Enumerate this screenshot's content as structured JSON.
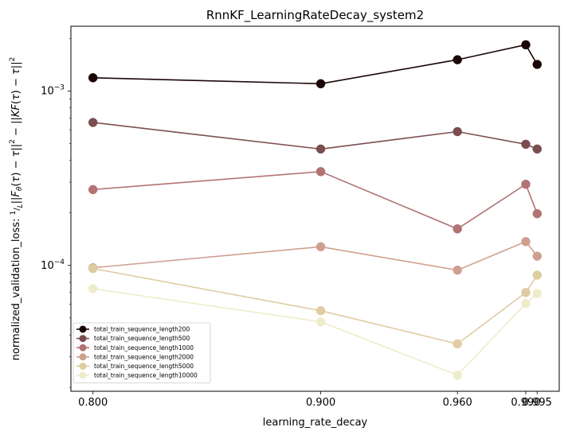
{
  "chart_data": {
    "type": "line",
    "title": "RnnKF_LearningRateDecay_system2",
    "xlabel": "learning_rate_decay",
    "ylabel": "normalized_validation_loss: $\\frac{1}{L}||F_\\theta(\\tau) - \\tau||^2 - ||KF(\\tau) - \\tau||^2$",
    "yscale": "log",
    "x": [
      0.8,
      0.9,
      0.96,
      0.99,
      0.995
    ],
    "xticks": [
      0.8,
      0.9,
      0.96,
      0.99,
      0.995
    ],
    "xtick_labels": [
      "0.800",
      "0.900",
      "0.960",
      "0.990",
      "0.995"
    ],
    "ytick_labels": [
      "10^-3",
      "10^-4"
    ],
    "xlim": [
      0.7903,
      1.0047
    ],
    "ylim": [
      1.9e-05,
      0.00235
    ],
    "legend_position": "lower-left",
    "series": [
      {
        "name": "total_train_sequence_length200",
        "color": "#1a0606",
        "values": [
          0.00119,
          0.0011,
          0.00151,
          0.00184,
          0.00142
        ]
      },
      {
        "name": "total_train_sequence_length500",
        "color": "#7a4e4e",
        "values": [
          0.00066,
          0.000465,
          0.000585,
          0.000495,
          0.000465
        ]
      },
      {
        "name": "total_train_sequence_length1000",
        "color": "#b27373",
        "values": [
          0.000272,
          0.000345,
          0.000162,
          0.000292,
          0.000198
        ]
      },
      {
        "name": "total_train_sequence_length2000",
        "color": "#cfa090",
        "values": [
          9.7e-05,
          0.000128,
          9.4e-05,
          0.000137,
          0.000113
        ]
      },
      {
        "name": "total_train_sequence_length5000",
        "color": "#dfcca2",
        "values": [
          9.6e-05,
          5.5e-05,
          3.55e-05,
          7e-05,
          8.8e-05
        ]
      },
      {
        "name": "total_train_sequence_length10000",
        "color": "#efeccc",
        "values": [
          7.35e-05,
          4.75e-05,
          2.35e-05,
          6.05e-05,
          6.9e-05
        ]
      }
    ]
  }
}
